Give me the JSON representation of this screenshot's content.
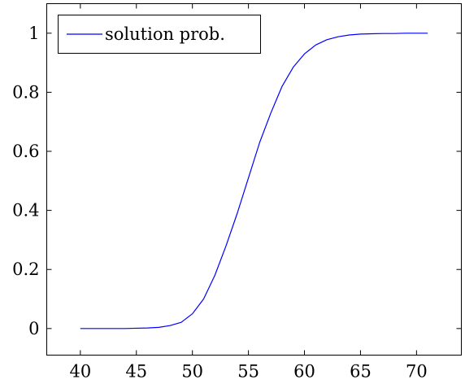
{
  "chart_data": {
    "type": "line",
    "xlim": [
      37,
      74
    ],
    "ylim": [
      -0.09,
      1.1
    ],
    "x_ticks": [
      40,
      45,
      50,
      55,
      60,
      65,
      70
    ],
    "y_ticks": [
      0,
      0.2,
      0.4,
      0.6,
      0.8,
      1
    ],
    "x_tick_labels": [
      "40",
      "45",
      "50",
      "55",
      "60",
      "65",
      "70"
    ],
    "y_tick_labels": [
      "0",
      "0.2",
      "0.4",
      "0.6",
      "0.8",
      "1"
    ],
    "grid": false,
    "legend_position": "top-left",
    "series": [
      {
        "name": "solution prob.",
        "color": "#0000ff",
        "x": [
          40,
          41,
          42,
          43,
          44,
          45,
          46,
          47,
          48,
          49,
          50,
          51,
          52,
          53,
          54,
          55,
          56,
          57,
          58,
          59,
          60,
          61,
          62,
          63,
          64,
          65,
          66,
          67,
          68,
          69,
          70,
          71
        ],
        "y": [
          0,
          0,
          0,
          0,
          0,
          0.001,
          0.002,
          0.004,
          0.01,
          0.021,
          0.05,
          0.1,
          0.18,
          0.28,
          0.39,
          0.51,
          0.63,
          0.73,
          0.82,
          0.885,
          0.93,
          0.96,
          0.978,
          0.988,
          0.994,
          0.997,
          0.998,
          0.999,
          0.999,
          1,
          1,
          1
        ]
      }
    ]
  }
}
